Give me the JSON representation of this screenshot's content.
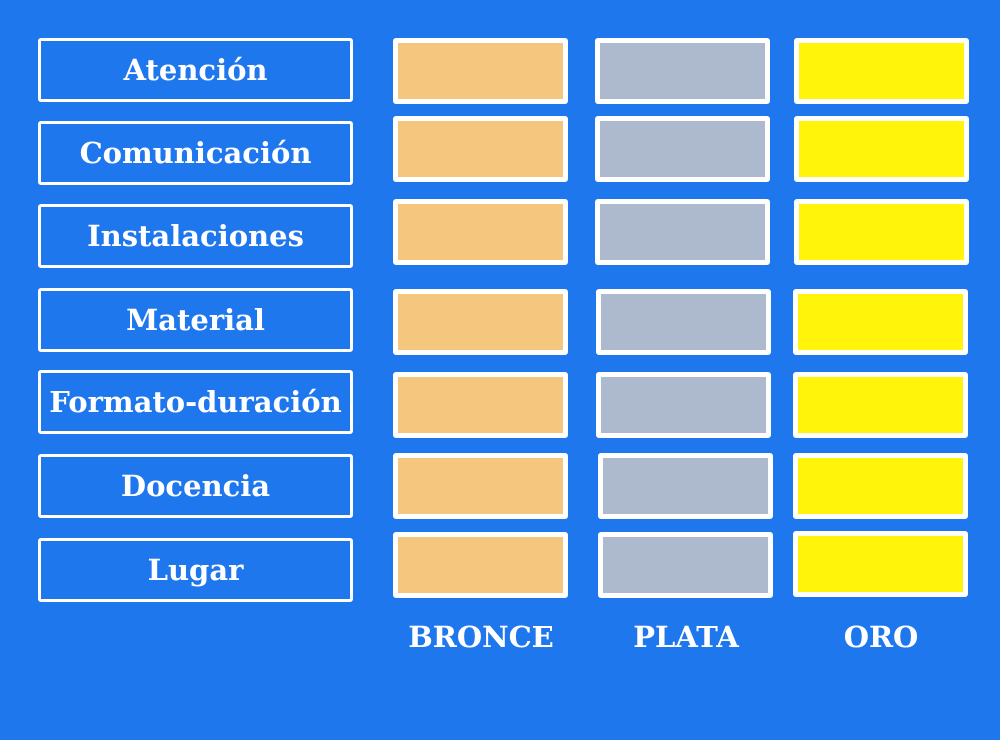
{
  "categories": [
    {
      "label": "Atención"
    },
    {
      "label": "Comunicación"
    },
    {
      "label": "Instalaciones"
    },
    {
      "label": "Material"
    },
    {
      "label": "Formato-duración"
    },
    {
      "label": "Docencia"
    },
    {
      "label": "Lugar"
    }
  ],
  "levels": [
    {
      "label": "BRONCE",
      "color": "#f5c77e"
    },
    {
      "label": "PLATA",
      "color": "#adbacd"
    },
    {
      "label": "ORO",
      "color": "#fff40a"
    }
  ],
  "colors": {
    "background": "#1f77ee",
    "border": "#ffffff",
    "text": "#ffffff"
  }
}
